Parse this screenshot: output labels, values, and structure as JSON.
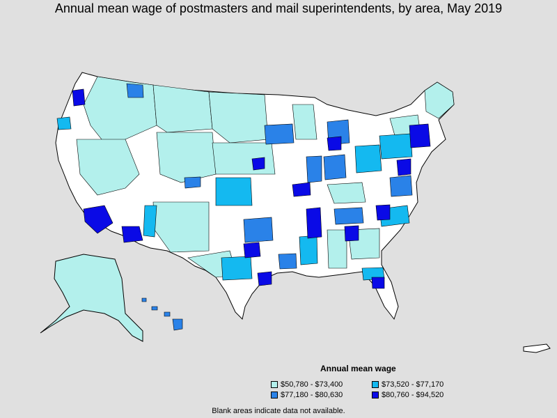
{
  "title": "Annual mean wage of postmasters and mail superintendents, by area, May 2019",
  "legend": {
    "title": "Annual mean wage",
    "items": [
      {
        "label": "$50,780 - $73,400",
        "color": "#b3f0ec"
      },
      {
        "label": "$73,520 - $77,170",
        "color": "#14b9f0"
      },
      {
        "label": "$77,180 - $80,630",
        "color": "#2a82e8"
      },
      {
        "label": "$80,760 - $94,520",
        "color": "#0a0ae6"
      }
    ]
  },
  "footnote": "Blank areas indicate data not available.",
  "colors": {
    "background": "#e0e0e0",
    "blank": "#ffffff",
    "border": "#000000"
  }
}
